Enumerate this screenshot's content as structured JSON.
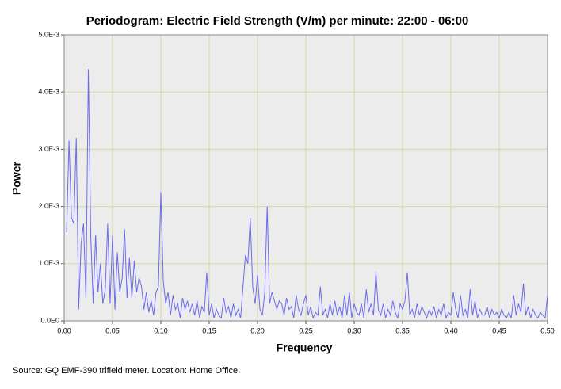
{
  "chart_data": {
    "type": "line",
    "title": "Periodogram: Electric Field Strength (V/m) per minute: 22:00 - 06:00",
    "x_label": "Frequency",
    "y_label": "Power",
    "source": "Source: GQ EMF-390 trifield meter. Location: Home Office.",
    "color": "#6b6bf0",
    "grid": true,
    "xlim": [
      0,
      0.5
    ],
    "xticks": [
      {
        "value": 0,
        "label": "0.00"
      },
      0.05,
      {
        "value": 0.1,
        "label": "0.10"
      },
      0.15,
      {
        "value": 0.2,
        "label": "0.20"
      },
      0.25,
      {
        "value": 0.3,
        "label": "0.30"
      },
      0.35,
      {
        "value": 0.4,
        "label": "0.40"
      },
      0.45,
      {
        "value": 0.5,
        "label": "0.50"
      }
    ],
    "ylim": [
      0,
      0.005
    ],
    "yticks": [
      {
        "value": 0,
        "label": "0.0E0"
      },
      {
        "value": 0.001,
        "label": "1.0E-3"
      },
      {
        "value": 0.002,
        "label": "2.0E-3"
      },
      {
        "value": 0.003,
        "label": "3.0E-3"
      },
      {
        "value": 0.004,
        "label": "4.0E-3"
      },
      {
        "value": 0.005,
        "label": "5.0E-3"
      }
    ],
    "x": [
      0.0025,
      0.005,
      0.0075,
      0.01,
      0.0125,
      0.015,
      0.0175,
      0.02,
      0.0225,
      0.025,
      0.0275,
      0.03,
      0.0325,
      0.035,
      0.0375,
      0.04,
      0.0425,
      0.045,
      0.0475,
      0.05,
      0.0525,
      0.055,
      0.0575,
      0.06,
      0.0625,
      0.065,
      0.0675,
      0.07,
      0.0725,
      0.075,
      0.0775,
      0.08,
      0.0825,
      0.085,
      0.0875,
      0.09,
      0.0925,
      0.095,
      0.0975,
      0.1,
      0.1025,
      0.105,
      0.1075,
      0.11,
      0.1125,
      0.115,
      0.1175,
      0.12,
      0.1225,
      0.125,
      0.1275,
      0.13,
      0.1325,
      0.135,
      0.1375,
      0.14,
      0.1425,
      0.145,
      0.1475,
      0.15,
      0.1525,
      0.155,
      0.1575,
      0.16,
      0.1625,
      0.165,
      0.1675,
      0.17,
      0.1725,
      0.175,
      0.1775,
      0.18,
      0.1825,
      0.185,
      0.1875,
      0.19,
      0.1925,
      0.195,
      0.1975,
      0.2,
      0.2025,
      0.205,
      0.2075,
      0.21,
      0.2125,
      0.215,
      0.2175,
      0.22,
      0.2225,
      0.225,
      0.2275,
      0.23,
      0.2325,
      0.235,
      0.2375,
      0.24,
      0.2425,
      0.245,
      0.2475,
      0.25,
      0.2525,
      0.255,
      0.2575,
      0.26,
      0.2625,
      0.265,
      0.2675,
      0.27,
      0.2725,
      0.275,
      0.2775,
      0.28,
      0.2825,
      0.285,
      0.2875,
      0.29,
      0.2925,
      0.295,
      0.2975,
      0.3,
      0.3025,
      0.305,
      0.3075,
      0.31,
      0.3125,
      0.315,
      0.3175,
      0.32,
      0.3225,
      0.325,
      0.3275,
      0.33,
      0.3325,
      0.335,
      0.3375,
      0.34,
      0.3425,
      0.345,
      0.3475,
      0.35,
      0.3525,
      0.355,
      0.3575,
      0.36,
      0.3625,
      0.365,
      0.3675,
      0.37,
      0.3725,
      0.375,
      0.3775,
      0.38,
      0.3825,
      0.385,
      0.3875,
      0.39,
      0.3925,
      0.395,
      0.3975,
      0.4,
      0.4025,
      0.405,
      0.4075,
      0.41,
      0.4125,
      0.415,
      0.4175,
      0.42,
      0.4225,
      0.425,
      0.4275,
      0.43,
      0.4325,
      0.435,
      0.4375,
      0.44,
      0.4425,
      0.445,
      0.4475,
      0.45,
      0.4525,
      0.455,
      0.4575,
      0.46,
      0.4625,
      0.465,
      0.4675,
      0.47,
      0.4725,
      0.475,
      0.4775,
      0.48,
      0.4825,
      0.485,
      0.4875,
      0.49,
      0.4925,
      0.495,
      0.4975,
      0.5
    ],
    "values": [
      0.00155,
      0.00315,
      0.0018,
      0.0017,
      0.0032,
      0.0002,
      0.00135,
      0.0017,
      0.0004,
      0.0044,
      0.0015,
      0.0003,
      0.0015,
      0.0005,
      0.001,
      0.0003,
      0.00055,
      0.0017,
      0.0003,
      0.0015,
      0.0002,
      0.0012,
      0.0005,
      0.00075,
      0.0016,
      0.0004,
      0.0011,
      0.0004,
      0.00105,
      0.0005,
      0.00075,
      0.0006,
      0.0002,
      0.0005,
      0.00015,
      0.00035,
      0.0001,
      0.0005,
      0.0006,
      0.00225,
      0.0007,
      0.0003,
      0.0005,
      0.0001,
      0.00045,
      0.0002,
      0.0003,
      5e-05,
      0.0004,
      0.0002,
      0.00035,
      0.00015,
      0.0003,
      0.0001,
      0.00035,
      5e-05,
      0.00025,
      0.00015,
      0.00085,
      0.0001,
      0.0003,
      5e-05,
      0.0002,
      0.0001,
      5e-05,
      0.0004,
      0.00015,
      0.00025,
      5e-05,
      0.0003,
      0.0001,
      0.0002,
      5e-05,
      0.0006,
      0.00115,
      0.001,
      0.0018,
      0.0006,
      0.0003,
      0.0008,
      0.0002,
      0.0001,
      0.0005,
      0.002,
      0.0003,
      0.0005,
      0.00035,
      0.0002,
      0.00035,
      0.0003,
      0.0001,
      0.0004,
      0.0002,
      0.00025,
      5e-05,
      0.00045,
      0.0002,
      0.0001,
      0.0003,
      0.00045,
      0.0001,
      0.00025,
      5e-05,
      0.00015,
      0.0001,
      0.0006,
      0.0001,
      0.0002,
      5e-05,
      0.0003,
      0.0001,
      0.00035,
      0.0001,
      0.00025,
      5e-05,
      0.00045,
      0.0001,
      0.0005,
      5e-05,
      0.0003,
      0.00015,
      0.0001,
      0.0003,
      5e-05,
      0.00055,
      0.00015,
      0.0003,
      0.0001,
      0.00085,
      0.0002,
      0.0001,
      0.0003,
      5e-05,
      0.0002,
      0.0001,
      0.00035,
      0.00015,
      5e-05,
      0.0003,
      0.0002,
      0.00035,
      0.00085,
      0.0001,
      0.0002,
      5e-05,
      0.0003,
      0.0001,
      0.00025,
      0.00015,
      5e-05,
      0.0002,
      0.0001,
      0.00025,
      5e-05,
      0.0002,
      0.0001,
      0.0003,
      5e-05,
      0.00015,
      0.0001,
      0.0005,
      0.0002,
      5e-05,
      0.00045,
      0.0001,
      0.0002,
      5e-05,
      0.00055,
      0.0001,
      0.00035,
      5e-05,
      0.0002,
      0.0001,
      0.0001,
      0.00025,
      5e-05,
      0.0002,
      0.0001,
      0.00015,
      5e-05,
      0.0002,
      0.0001,
      5e-05,
      0.00015,
      5e-05,
      0.00045,
      0.0001,
      0.0003,
      0.00015,
      0.00065,
      0.0001,
      0.00025,
      5e-05,
      0.0002,
      0.0001,
      5e-05,
      0.00015,
      0.0001,
      5e-05,
      0.00045
    ]
  }
}
